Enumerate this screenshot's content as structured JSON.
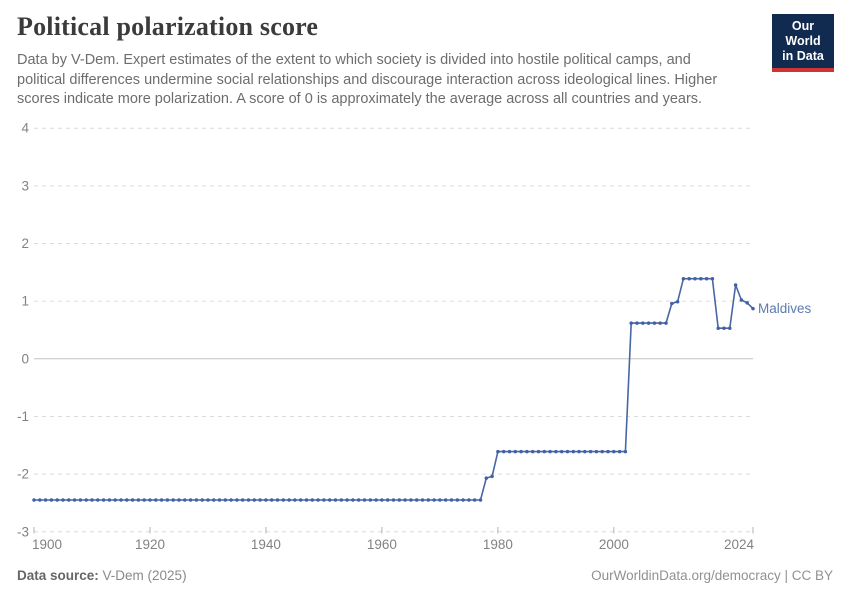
{
  "header": {
    "title": "Political polarization score",
    "subtitle_lines": [
      "Data by V-Dem. Expert estimates of the extent to which society is divided into hostile political camps, and",
      "political differences undermine social relationships and discourage interaction across ideological lines. Higher",
      "scores indicate more polarization. A score of 0 is approximately the average across all countries and years."
    ],
    "logo": {
      "line1": "Our World",
      "line2": "in Data",
      "bg_color": "#102a50",
      "bar_color": "#cf3434"
    }
  },
  "footer": {
    "source_label": "Data source:",
    "source_value": " V-Dem (2025)",
    "license": "OurWorldinData.org/democracy | CC BY"
  },
  "chart_data": {
    "type": "line",
    "title": "Political polarization score",
    "entity": "Maldives",
    "xlabel": "",
    "ylabel": "",
    "x_ticks": [
      1900,
      1920,
      1940,
      1960,
      1980,
      2000,
      2024
    ],
    "y_ticks": [
      4,
      3,
      2,
      1,
      0,
      -1,
      -2,
      -3
    ],
    "xlim": [
      1900,
      2024
    ],
    "ylim": [
      -3,
      4
    ],
    "grid": "horizontal-dashed",
    "zero_line": true,
    "colors": {
      "line": "#4766a6",
      "marker": "#4161a3",
      "entity_label": "#5e7ab0",
      "gridline": "#dcdcdc",
      "zero_line": "#c4c4c4",
      "axis_text": "#828282",
      "tick_mark": "#b3b3b3"
    },
    "series": [
      {
        "name": "Maldives",
        "runs": [
          {
            "from": 1900,
            "to": 1977,
            "value": -2.45
          },
          {
            "from": 1978,
            "to": 1978,
            "value": -2.07
          },
          {
            "from": 1979,
            "to": 1979,
            "value": -2.04
          },
          {
            "from": 1980,
            "to": 2002,
            "value": -1.61
          },
          {
            "from": 2003,
            "to": 2009,
            "value": 0.62
          },
          {
            "from": 2010,
            "to": 2010,
            "value": 0.96
          },
          {
            "from": 2011,
            "to": 2011,
            "value": 0.99
          },
          {
            "from": 2012,
            "to": 2017,
            "value": 1.39
          },
          {
            "from": 2018,
            "to": 2020,
            "value": 0.53
          },
          {
            "from": 2021,
            "to": 2021,
            "value": 1.28
          },
          {
            "from": 2022,
            "to": 2022,
            "value": 1.02
          },
          {
            "from": 2023,
            "to": 2023,
            "value": 0.97
          },
          {
            "from": 2024,
            "to": 2024,
            "value": 0.87
          }
        ]
      }
    ]
  }
}
